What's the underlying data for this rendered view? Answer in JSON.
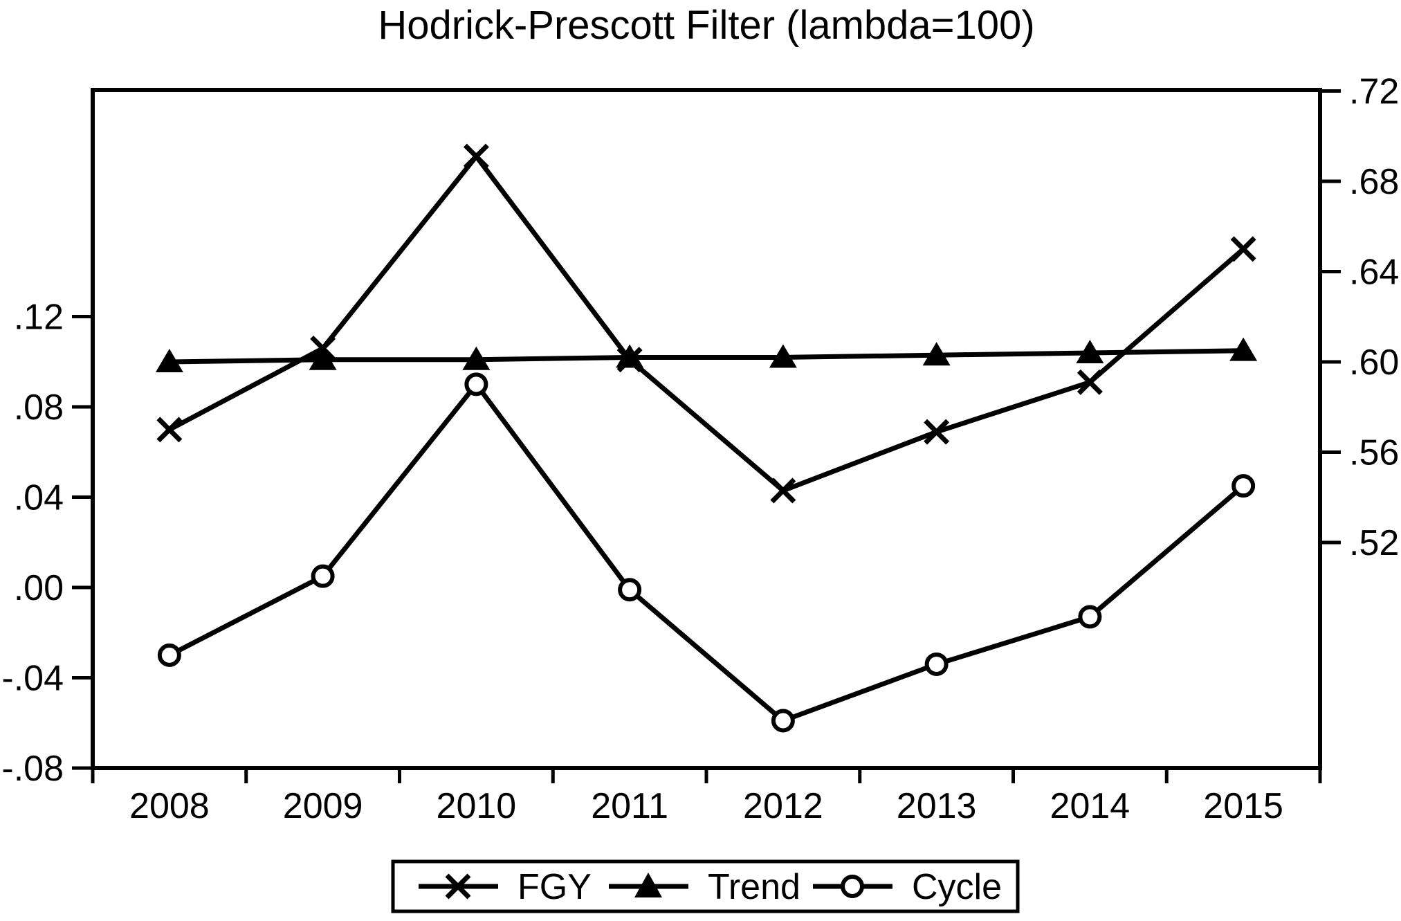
{
  "title": "Hodrick-Prescott Filter (lambda=100)",
  "colors": {
    "foreground": "#000000",
    "background": "#ffffff"
  },
  "legend": {
    "position": "bottom",
    "items": [
      {
        "label": "FGY",
        "marker": "x-marker"
      },
      {
        "label": "Trend",
        "marker": "triangle-marker"
      },
      {
        "label": "Cycle",
        "marker": "circle-marker"
      }
    ]
  },
  "chart_data": {
    "type": "line",
    "title": "Hodrick-Prescott Filter (lambda=100)",
    "categories": [
      "2008",
      "2009",
      "2010",
      "2011",
      "2012",
      "2013",
      "2014",
      "2015"
    ],
    "series": [
      {
        "name": "FGY",
        "axis": "right",
        "marker": "x",
        "values": [
          0.57,
          0.606,
          0.691,
          0.601,
          0.543,
          0.569,
          0.591,
          0.65
        ]
      },
      {
        "name": "Trend",
        "axis": "right",
        "marker": "triangle",
        "values": [
          0.6,
          0.601,
          0.601,
          0.602,
          0.602,
          0.603,
          0.604,
          0.605
        ]
      },
      {
        "name": "Cycle",
        "axis": "left",
        "marker": "circle",
        "values": [
          -0.03,
          0.005,
          0.09,
          -0.001,
          -0.059,
          -0.034,
          -0.013,
          0.045
        ]
      }
    ],
    "left_axis": {
      "tick_labels": [
        ".12",
        ".08",
        ".04",
        ".00",
        "-.04",
        "-.08"
      ],
      "tick_values": [
        0.12,
        0.08,
        0.04,
        0.0,
        -0.04,
        -0.08
      ],
      "visible_range": [
        -0.08,
        0.22
      ]
    },
    "right_axis": {
      "tick_labels": [
        ".72",
        ".68",
        ".64",
        ".60",
        ".56",
        ".52"
      ],
      "tick_values": [
        0.72,
        0.68,
        0.64,
        0.6,
        0.56,
        0.52
      ],
      "visible_range": [
        0.42,
        0.72
      ]
    },
    "grid": false,
    "legend_position": "bottom"
  }
}
